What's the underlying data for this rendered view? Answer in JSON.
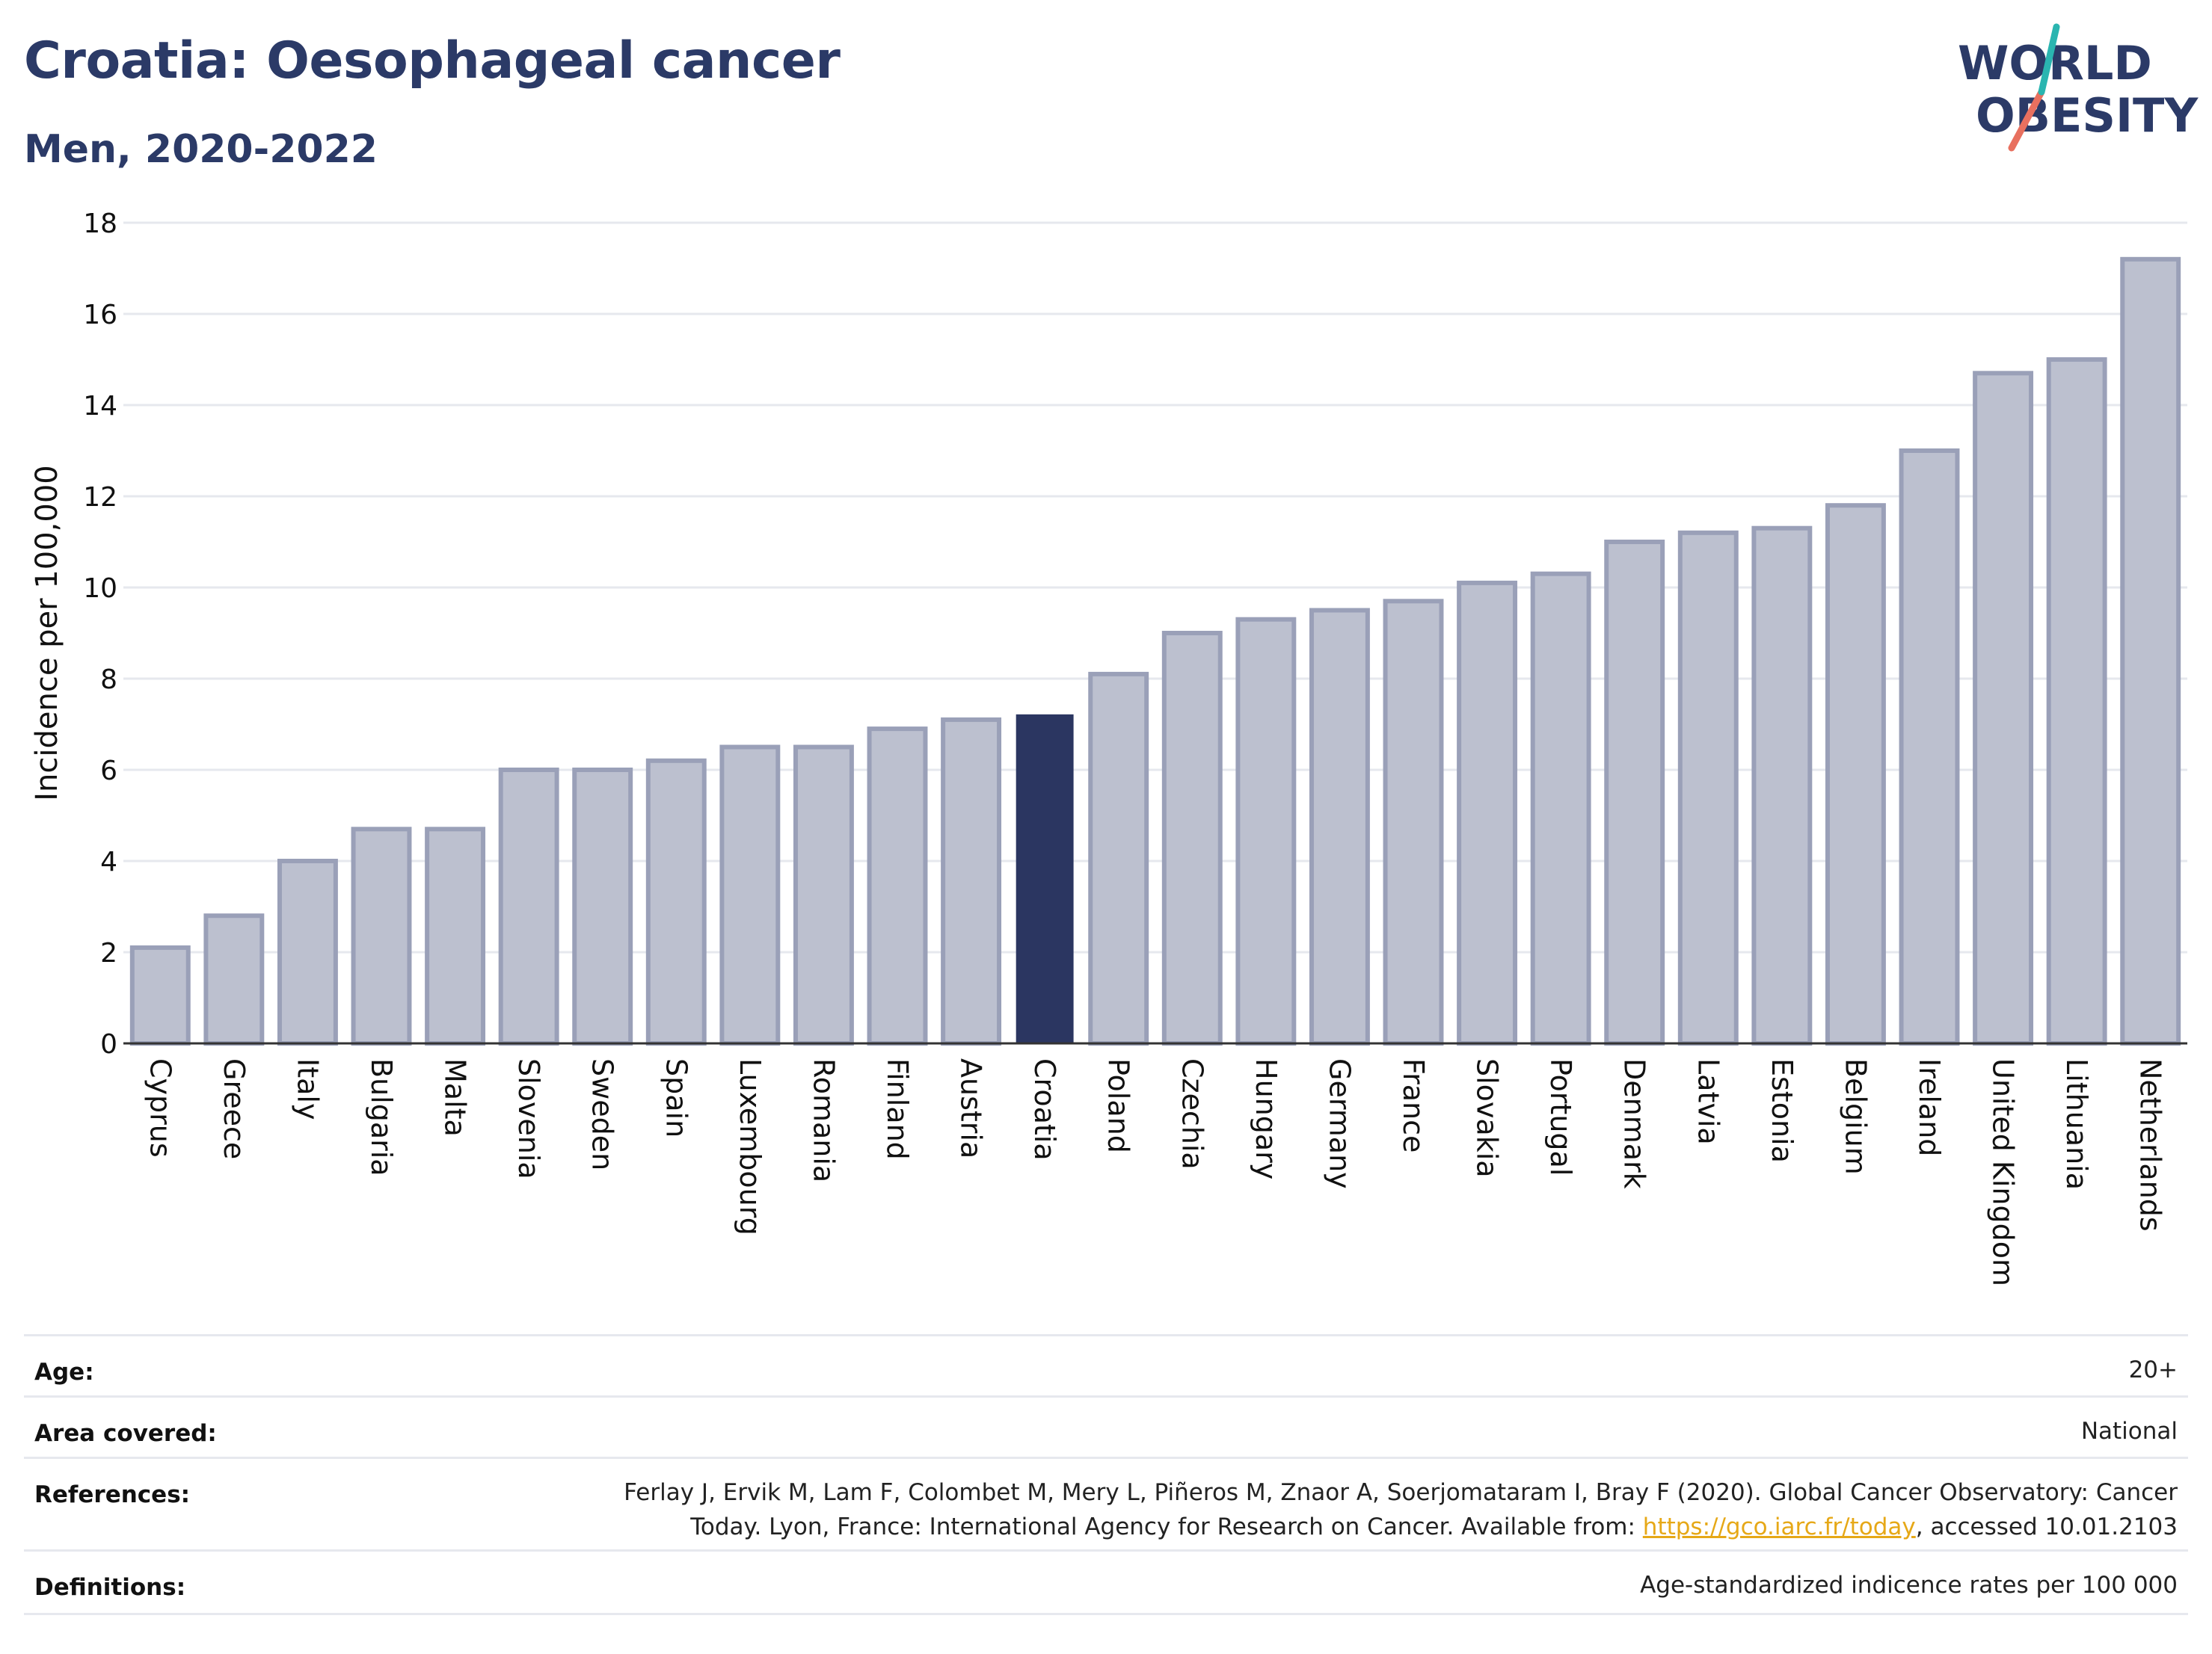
{
  "title": "Croatia: Oesophageal cancer",
  "subtitle": "Men, 2020-2022",
  "logo": {
    "line1": "WORLD",
    "line2": "OBESITY"
  },
  "colors": {
    "highlight": "#2b3661",
    "bar_fill": "#bcc0cf",
    "bar_stroke": "#9aa0b8",
    "title": "#2b3a67",
    "grid": "#e6e8ee",
    "logo_teal": "#2ab5b0",
    "logo_red": "#e8705f"
  },
  "chart_data": {
    "type": "bar",
    "ylabel": "Incidence per 100,000",
    "xlabel": "",
    "ylim": [
      0,
      18
    ],
    "yticks": [
      0,
      2,
      4,
      6,
      8,
      10,
      12,
      14,
      16,
      18
    ],
    "grid": true,
    "highlight": "Croatia",
    "categories": [
      "Cyprus",
      "Greece",
      "Italy",
      "Bulgaria",
      "Malta",
      "Slovenia",
      "Sweden",
      "Spain",
      "Luxembourg",
      "Romania",
      "Finland",
      "Austria",
      "Croatia",
      "Poland",
      "Czechia",
      "Hungary",
      "Germany",
      "France",
      "Slovakia",
      "Portugal",
      "Denmark",
      "Latvia",
      "Estonia",
      "Belgium",
      "Ireland",
      "United Kingdom",
      "Lithuania",
      "Netherlands"
    ],
    "values": [
      2.1,
      2.8,
      4.0,
      4.7,
      4.7,
      6.0,
      6.0,
      6.2,
      6.5,
      6.5,
      6.9,
      7.1,
      7.2,
      8.1,
      9.0,
      9.3,
      9.5,
      9.7,
      10.1,
      10.3,
      11.0,
      11.2,
      11.3,
      11.8,
      13.0,
      14.7,
      15.0,
      17.2
    ]
  },
  "meta": {
    "age": {
      "label": "Age:",
      "value": "20+"
    },
    "area": {
      "label": "Area covered:",
      "value": "National"
    },
    "references": {
      "label": "References:",
      "line1": "Ferlay J, Ervik M, Lam F, Colombet M, Mery L, Piñeros M, Znaor A, Soerjomataram I, Bray F (2020). Global Cancer Observatory: Cancer",
      "line2_pre": "Today. Lyon, France: International Agency for Research on Cancer. Available from: ",
      "link": "https://gco.iarc.fr/today",
      "line2_post": ", accessed 10.01.2103"
    },
    "definitions": {
      "label": "Definitions:",
      "value": "Age-standardized indicence rates per 100 000"
    }
  }
}
